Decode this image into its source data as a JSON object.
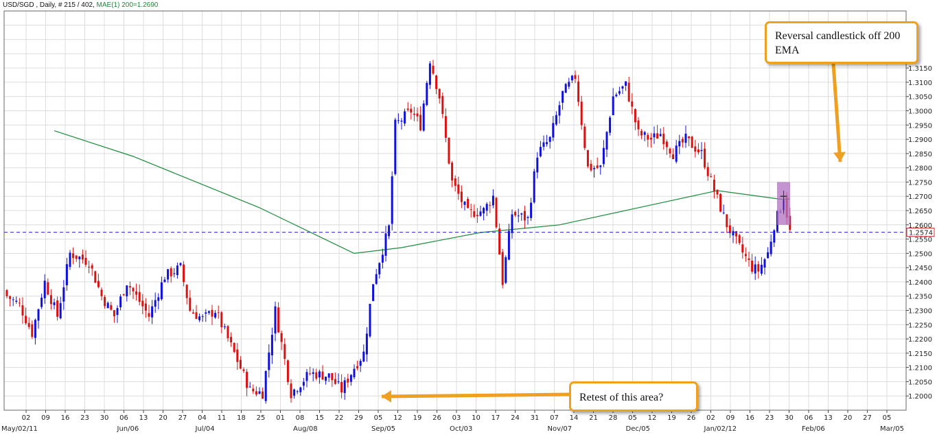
{
  "header": {
    "symbol_text": "USD/SGD , Daily, # 215 / 402,",
    "indicator_text": "MAE(1) 200=1.2690"
  },
  "annotations": {
    "top_right": "Reversal candlestick off 200 EMA",
    "bottom": "Retest of this area?"
  },
  "colors": {
    "up": "#1010dd",
    "down": "#dd1010",
    "ema": "#1a8a3a",
    "price_line": "#2020cc",
    "callout_border": "#f0a020",
    "highlight": "#b070c0"
  },
  "chart_data": {
    "type": "candlestick",
    "ylim": [
      1.195,
      1.335
    ],
    "grid": true,
    "y_ticks": [
      1.2,
      1.205,
      1.21,
      1.215,
      1.22,
      1.225,
      1.23,
      1.235,
      1.24,
      1.245,
      1.25,
      1.255,
      1.26,
      1.265,
      1.27,
      1.275,
      1.28,
      1.285,
      1.29,
      1.295,
      1.3,
      1.305,
      1.31,
      1.315
    ],
    "y_tick_labels": [
      "1.2000",
      "1.2050",
      "1.2100",
      "1.2150",
      "1.2200",
      "1.2250",
      "1.2300",
      "1.2350",
      "1.2400",
      "1.2450",
      "1.2500",
      "1.2550",
      "1.2600",
      "1.2650",
      "1.2700",
      "1.2750",
      "1.2800",
      "1.2850",
      "1.2900",
      "1.2950",
      "1.3000",
      "1.3050",
      "1.3100",
      "1.3150"
    ],
    "x_tick_labels": [
      "02",
      "09",
      "16",
      "23",
      "30",
      "06",
      "13",
      "20",
      "27",
      "04",
      "11",
      "18",
      "25",
      "01",
      "08",
      "15",
      "22",
      "29",
      "05",
      "12",
      "19",
      "26",
      "03",
      "10",
      "17",
      "24",
      "31",
      "07",
      "14",
      "21",
      "28",
      "05",
      "12",
      "19",
      "26",
      "02",
      "09",
      "16",
      "23",
      "30",
      "06",
      "13",
      "20",
      "27",
      "05"
    ],
    "month_labels": [
      {
        "label": "May/02/11",
        "tick": 0
      },
      {
        "label": "Jun/06",
        "tick": 5
      },
      {
        "label": "Jul/04",
        "tick": 9
      },
      {
        "label": "Aug/08",
        "tick": 14
      },
      {
        "label": "Sep/05",
        "tick": 18
      },
      {
        "label": "Oct/03",
        "tick": 22
      },
      {
        "label": "Nov/07",
        "tick": 27
      },
      {
        "label": "Dec/05",
        "tick": 31
      },
      {
        "label": "Jan/02/12",
        "tick": 35
      },
      {
        "label": "Feb/06",
        "tick": 40
      },
      {
        "label": "Mar/05",
        "tick": 44
      }
    ],
    "current_price": 1.2574,
    "current_price_label": "1.2574",
    "ema_period": 200,
    "ema": [
      {
        "bar": 15,
        "value": 1.293
      },
      {
        "bar": 40,
        "value": 1.284
      },
      {
        "bar": 80,
        "value": 1.266
      },
      {
        "bar": 110,
        "value": 1.25
      },
      {
        "bar": 125,
        "value": 1.252
      },
      {
        "bar": 150,
        "value": 1.2573
      },
      {
        "bar": 175,
        "value": 1.26
      },
      {
        "bar": 200,
        "value": 1.266
      },
      {
        "bar": 225,
        "value": 1.272
      },
      {
        "bar": 245,
        "value": 1.269
      },
      {
        "bar": 248,
        "value": 1.269
      }
    ],
    "ohlc_keypoints": [
      [
        0,
        1.235
      ],
      [
        4,
        1.232
      ],
      [
        8,
        1.222
      ],
      [
        12,
        1.24
      ],
      [
        16,
        1.228
      ],
      [
        20,
        1.25
      ],
      [
        26,
        1.247
      ],
      [
        30,
        1.235
      ],
      [
        34,
        1.228
      ],
      [
        38,
        1.24
      ],
      [
        45,
        1.228
      ],
      [
        50,
        1.242
      ],
      [
        55,
        1.245
      ],
      [
        58,
        1.23
      ],
      [
        62,
        1.227
      ],
      [
        66,
        1.23
      ],
      [
        72,
        1.215
      ],
      [
        77,
        1.202
      ],
      [
        81,
        1.201
      ],
      [
        85,
        1.23
      ],
      [
        90,
        1.201
      ],
      [
        96,
        1.208
      ],
      [
        102,
        1.207
      ],
      [
        106,
        1.202
      ],
      [
        110,
        1.21
      ],
      [
        113,
        1.215
      ],
      [
        116,
        1.24
      ],
      [
        121,
        1.259
      ],
      [
        123,
        1.295
      ],
      [
        128,
        1.3
      ],
      [
        131,
        1.295
      ],
      [
        134,
        1.318
      ],
      [
        137,
        1.305
      ],
      [
        141,
        1.275
      ],
      [
        146,
        1.264
      ],
      [
        151,
        1.265
      ],
      [
        154,
        1.27
      ],
      [
        157,
        1.24
      ],
      [
        160,
        1.264
      ],
      [
        165,
        1.262
      ],
      [
        168,
        1.285
      ],
      [
        172,
        1.29
      ],
      [
        176,
        1.306
      ],
      [
        180,
        1.312
      ],
      [
        184,
        1.28
      ],
      [
        188,
        1.28
      ],
      [
        192,
        1.305
      ],
      [
        196,
        1.309
      ],
      [
        200,
        1.292
      ],
      [
        204,
        1.29
      ],
      [
        207,
        1.292
      ],
      [
        211,
        1.285
      ],
      [
        215,
        1.29
      ],
      [
        220,
        1.285
      ],
      [
        224,
        1.272
      ],
      [
        228,
        1.26
      ],
      [
        232,
        1.252
      ],
      [
        236,
        1.245
      ],
      [
        238,
        1.244
      ],
      [
        241,
        1.25
      ],
      [
        243,
        1.26
      ],
      [
        245,
        1.266
      ],
      [
        246,
        1.27
      ],
      [
        248,
        1.2574
      ]
    ]
  }
}
